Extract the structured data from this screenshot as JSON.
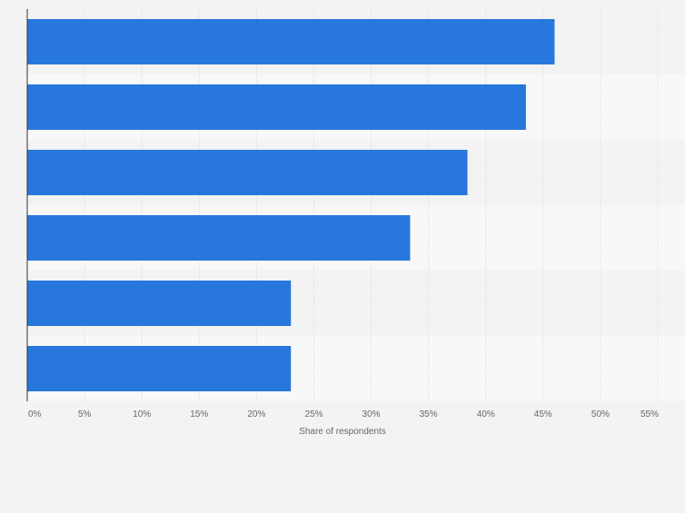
{
  "chart_data": {
    "type": "bar",
    "orientation": "horizontal",
    "categories": [
      "",
      "",
      "",
      "",
      "",
      ""
    ],
    "values": [
      46,
      43.5,
      38.4,
      33.4,
      23,
      23
    ],
    "xlabel": "Share of respondents",
    "ylabel": "",
    "xlim": [
      0,
      55
    ],
    "ticks": [
      0,
      5,
      10,
      15,
      20,
      25,
      30,
      35,
      40,
      45,
      50,
      55
    ],
    "tick_labels": [
      "0%",
      "5%",
      "10%",
      "15%",
      "20%",
      "25%",
      "30%",
      "35%",
      "40%",
      "45%",
      "50%",
      "55%"
    ],
    "grid": "vertical",
    "legend": "none",
    "bar_color": "#2777dd",
    "band_colors": [
      "#f3f3f3",
      "#f8f8f8"
    ]
  }
}
